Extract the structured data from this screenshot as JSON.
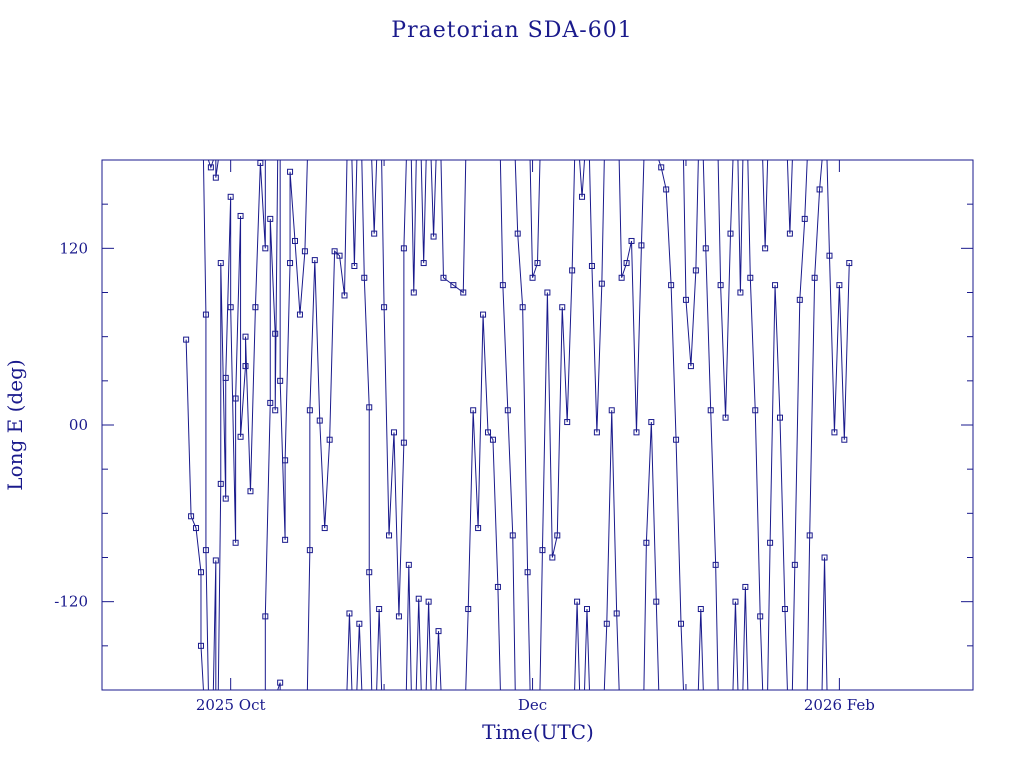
{
  "chart_data": {
    "type": "scatter",
    "title": "Praetorian SDA-601",
    "xlabel": "Time(UTC)",
    "ylabel": "Long E (deg)",
    "x_range": [
      "2025-09-05",
      "2026-02-28"
    ],
    "ylim": [
      -180,
      180
    ],
    "y_ticks": [
      -120,
      0,
      120
    ],
    "y_tick_labels": [
      "-120",
      "00",
      "120"
    ],
    "x_ticks": [
      {
        "date": "2025-10-01",
        "label": "2025 Oct"
      },
      {
        "date": "2025-12-01",
        "label": "Dec"
      },
      {
        "date": "2026-02-01",
        "label": "2026 Feb"
      }
    ],
    "marker": "square",
    "line_connected": true,
    "wraps_at": [
      -180,
      180
    ],
    "color": "#1a1a8c",
    "series": [
      {
        "points": [
          [
            "2025-09-22",
            58
          ],
          [
            "2025-09-23",
            -62
          ],
          [
            "2025-09-24",
            -70
          ],
          [
            "2025-09-25",
            -100
          ],
          [
            "2025-09-25",
            -150
          ],
          [
            "2025-09-26",
            75
          ],
          [
            "2025-09-26",
            -85
          ],
          [
            "2025-09-27",
            175
          ],
          [
            "2025-09-28",
            -92
          ],
          [
            "2025-09-28",
            168
          ],
          [
            "2025-09-29",
            -40
          ],
          [
            "2025-09-29",
            110
          ],
          [
            "2025-09-30",
            -50
          ],
          [
            "2025-09-30",
            32
          ],
          [
            "2025-10-01",
            155
          ],
          [
            "2025-10-01",
            80
          ],
          [
            "2025-10-02",
            -80
          ],
          [
            "2025-10-02",
            18
          ],
          [
            "2025-10-03",
            142
          ],
          [
            "2025-10-03",
            -8
          ],
          [
            "2025-10-04",
            40
          ],
          [
            "2025-10-04",
            60
          ],
          [
            "2025-10-05",
            -45
          ],
          [
            "2025-10-06",
            80
          ],
          [
            "2025-10-07",
            178
          ],
          [
            "2025-10-08",
            120
          ],
          [
            "2025-10-08",
            -130
          ],
          [
            "2025-10-09",
            15
          ],
          [
            "2025-10-09",
            140
          ],
          [
            "2025-10-10",
            62
          ],
          [
            "2025-10-10",
            10
          ],
          [
            "2025-10-11",
            -175
          ],
          [
            "2025-10-11",
            30
          ],
          [
            "2025-10-12",
            -78
          ],
          [
            "2025-10-12",
            -24
          ],
          [
            "2025-10-13",
            110
          ],
          [
            "2025-10-13",
            172
          ],
          [
            "2025-10-14",
            125
          ],
          [
            "2025-10-15",
            75
          ],
          [
            "2025-10-16",
            118
          ],
          [
            "2025-10-17",
            -85
          ],
          [
            "2025-10-17",
            10
          ],
          [
            "2025-10-18",
            112
          ],
          [
            "2025-10-19",
            3
          ],
          [
            "2025-10-20",
            -70
          ],
          [
            "2025-10-21",
            -10
          ],
          [
            "2025-10-22",
            118
          ],
          [
            "2025-10-23",
            115
          ],
          [
            "2025-10-24",
            88
          ],
          [
            "2025-10-25",
            -128
          ],
          [
            "2025-10-26",
            108
          ],
          [
            "2025-10-27",
            -135
          ],
          [
            "2025-10-28",
            100
          ],
          [
            "2025-10-29",
            12
          ],
          [
            "2025-10-29",
            -100
          ],
          [
            "2025-10-30",
            130
          ],
          [
            "2025-10-31",
            -125
          ],
          [
            "2025-11-01",
            80
          ],
          [
            "2025-11-02",
            -75
          ],
          [
            "2025-11-03",
            -5
          ],
          [
            "2025-11-04",
            -130
          ],
          [
            "2025-11-05",
            -12
          ],
          [
            "2025-11-05",
            120
          ],
          [
            "2025-11-06",
            -95
          ],
          [
            "2025-11-07",
            90
          ],
          [
            "2025-11-08",
            -118
          ],
          [
            "2025-11-09",
            110
          ],
          [
            "2025-11-10",
            -120
          ],
          [
            "2025-11-11",
            128
          ],
          [
            "2025-11-12",
            -140
          ],
          [
            "2025-11-13",
            100
          ],
          [
            "2025-11-15",
            95
          ],
          [
            "2025-11-17",
            90
          ],
          [
            "2025-11-18",
            -125
          ],
          [
            "2025-11-19",
            10
          ],
          [
            "2025-11-20",
            -70
          ],
          [
            "2025-11-21",
            75
          ],
          [
            "2025-11-22",
            -5
          ],
          [
            "2025-11-23",
            -10
          ],
          [
            "2025-11-24",
            -110
          ],
          [
            "2025-11-25",
            95
          ],
          [
            "2025-11-26",
            10
          ],
          [
            "2025-11-27",
            -75
          ],
          [
            "2025-11-28",
            130
          ],
          [
            "2025-11-29",
            80
          ],
          [
            "2025-11-30",
            -100
          ],
          [
            "2025-12-01",
            100
          ],
          [
            "2025-12-02",
            110
          ],
          [
            "2025-12-03",
            -85
          ],
          [
            "2025-12-04",
            90
          ],
          [
            "2025-12-05",
            -90
          ],
          [
            "2025-12-06",
            -75
          ],
          [
            "2025-12-07",
            80
          ],
          [
            "2025-12-08",
            2
          ],
          [
            "2025-12-09",
            105
          ],
          [
            "2025-12-10",
            -120
          ],
          [
            "2025-12-11",
            155
          ],
          [
            "2025-12-12",
            -125
          ],
          [
            "2025-12-13",
            108
          ],
          [
            "2025-12-14",
            -5
          ],
          [
            "2025-12-15",
            96
          ],
          [
            "2025-12-16",
            -135
          ],
          [
            "2025-12-17",
            10
          ],
          [
            "2025-12-18",
            -128
          ],
          [
            "2025-12-19",
            100
          ],
          [
            "2025-12-20",
            110
          ],
          [
            "2025-12-21",
            125
          ],
          [
            "2025-12-22",
            -5
          ],
          [
            "2025-12-23",
            122
          ],
          [
            "2025-12-24",
            -80
          ],
          [
            "2025-12-25",
            2
          ],
          [
            "2025-12-26",
            -120
          ],
          [
            "2025-12-27",
            175
          ],
          [
            "2025-12-28",
            160
          ],
          [
            "2025-12-29",
            95
          ],
          [
            "2025-12-30",
            -10
          ],
          [
            "2025-12-31",
            -135
          ],
          [
            "2026-01-01",
            85
          ],
          [
            "2026-01-02",
            40
          ],
          [
            "2026-01-03",
            105
          ],
          [
            "2026-01-04",
            -125
          ],
          [
            "2026-01-05",
            120
          ],
          [
            "2026-01-06",
            10
          ],
          [
            "2026-01-07",
            -95
          ],
          [
            "2026-01-08",
            95
          ],
          [
            "2026-01-09",
            5
          ],
          [
            "2026-01-10",
            130
          ],
          [
            "2026-01-11",
            -120
          ],
          [
            "2026-01-12",
            90
          ],
          [
            "2026-01-13",
            -110
          ],
          [
            "2026-01-14",
            100
          ],
          [
            "2026-01-15",
            10
          ],
          [
            "2026-01-16",
            -130
          ],
          [
            "2026-01-17",
            120
          ],
          [
            "2026-01-18",
            -80
          ],
          [
            "2026-01-19",
            95
          ],
          [
            "2026-01-20",
            5
          ],
          [
            "2026-01-21",
            -125
          ],
          [
            "2026-01-22",
            130
          ],
          [
            "2026-01-23",
            -95
          ],
          [
            "2026-01-24",
            85
          ],
          [
            "2026-01-25",
            140
          ],
          [
            "2026-01-26",
            -75
          ],
          [
            "2026-01-27",
            100
          ],
          [
            "2026-01-28",
            160
          ],
          [
            "2026-01-29",
            -90
          ],
          [
            "2026-01-30",
            115
          ],
          [
            "2026-01-31",
            -5
          ],
          [
            "2026-02-01",
            95
          ],
          [
            "2026-02-02",
            -10
          ],
          [
            "2026-02-03",
            110
          ]
        ]
      }
    ]
  }
}
